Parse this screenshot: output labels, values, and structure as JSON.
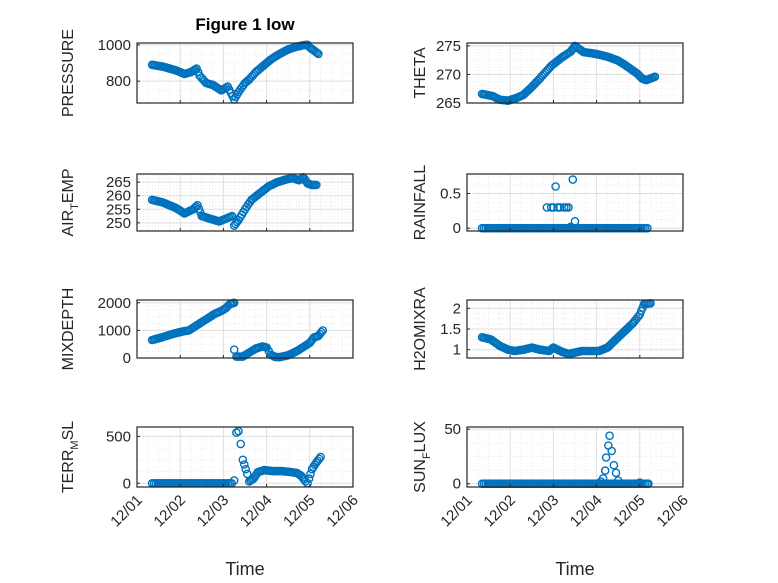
{
  "figure": {
    "title": "Figure 1 low"
  },
  "colors": {
    "marker": "#0072BD",
    "axes": "#262626",
    "grid": "#DFDFDF"
  },
  "chart_data": [
    {
      "type": "scatter",
      "ylabel": "PRESSURE",
      "ylim": [
        680,
        1010
      ],
      "yticks": [
        800,
        1000
      ],
      "ylabel_parts": [
        {
          "t": "PRESSURE",
          "sub": false
        }
      ],
      "xlim": [
        0,
        5
      ],
      "xticks": [
        "12/01",
        "12/02",
        "12/03",
        "12/04",
        "12/05",
        "12/06"
      ],
      "xlabel": "",
      "shape": [
        [
          0.35,
          890
        ],
        [
          0.6,
          880
        ],
        [
          0.9,
          860
        ],
        [
          1.1,
          840
        ],
        [
          1.25,
          850
        ],
        [
          1.38,
          870
        ],
        [
          1.45,
          830
        ],
        [
          1.6,
          790
        ],
        [
          1.75,
          780
        ],
        [
          1.95,
          750
        ],
        [
          2.1,
          770
        ],
        [
          2.25,
          700
        ],
        [
          2.35,
          740
        ],
        [
          2.5,
          790
        ],
        [
          2.6,
          810
        ],
        [
          2.75,
          850
        ],
        [
          2.9,
          880
        ],
        [
          3.1,
          920
        ],
        [
          3.3,
          950
        ],
        [
          3.5,
          975
        ],
        [
          3.7,
          990
        ],
        [
          3.85,
          998
        ],
        [
          3.95,
          1000
        ],
        [
          4.0,
          985
        ],
        [
          4.1,
          968
        ],
        [
          4.2,
          950
        ]
      ]
    },
    {
      "type": "scatter",
      "ylabel": "THETA",
      "ylim": [
        265,
        275.5
      ],
      "yticks": [
        265,
        270,
        275
      ],
      "ylabel_parts": [
        {
          "t": "THETA",
          "sub": false
        }
      ],
      "xlim": [
        0,
        5
      ],
      "xticks": [
        "12/01",
        "12/02",
        "12/03",
        "12/04",
        "12/05",
        "12/06"
      ],
      "xlabel": "",
      "shape": [
        [
          0.35,
          266.6
        ],
        [
          0.6,
          266.2
        ],
        [
          0.75,
          265.6
        ],
        [
          0.95,
          265.4
        ],
        [
          1.15,
          265.9
        ],
        [
          1.3,
          266.4
        ],
        [
          1.5,
          267.8
        ],
        [
          1.7,
          269.4
        ],
        [
          1.95,
          271.5
        ],
        [
          2.2,
          273.0
        ],
        [
          2.4,
          274.0
        ],
        [
          2.5,
          275.0
        ],
        [
          2.7,
          273.9
        ],
        [
          2.9,
          273.7
        ],
        [
          3.1,
          273.4
        ],
        [
          3.3,
          273.0
        ],
        [
          3.5,
          272.4
        ],
        [
          3.65,
          271.7
        ],
        [
          3.8,
          270.9
        ],
        [
          3.95,
          270.1
        ],
        [
          4.05,
          269.3
        ],
        [
          4.15,
          269.0
        ],
        [
          4.25,
          269.3
        ],
        [
          4.35,
          269.6
        ]
      ]
    },
    {
      "type": "scatter",
      "ylabel": "AIR_TEMP",
      "ylim": [
        247,
        268
      ],
      "yticks": [
        250,
        255,
        260,
        265
      ],
      "ylabel_parts": [
        {
          "t": "AIR",
          "sub": false
        },
        {
          "t": "T",
          "sub": true
        },
        {
          "t": "EMP",
          "sub": false
        }
      ],
      "xlim": [
        0,
        5
      ],
      "xticks": [
        "12/01",
        "12/02",
        "12/03",
        "12/04",
        "12/05",
        "12/06"
      ],
      "xlabel": "",
      "shape": [
        [
          0.35,
          258.5
        ],
        [
          0.6,
          257.5
        ],
        [
          0.9,
          255.5
        ],
        [
          1.1,
          253.5
        ],
        [
          1.3,
          255.0
        ],
        [
          1.4,
          256.5
        ],
        [
          1.5,
          252.5
        ],
        [
          1.7,
          251.5
        ],
        [
          1.9,
          250.5
        ],
        [
          2.05,
          251.5
        ],
        [
          2.2,
          252.5
        ],
        [
          2.25,
          249.0
        ],
        [
          2.35,
          251.0
        ],
        [
          2.5,
          255.0
        ],
        [
          2.65,
          258.5
        ],
        [
          2.85,
          261.0
        ],
        [
          3.05,
          263.5
        ],
        [
          3.25,
          265.0
        ],
        [
          3.45,
          266.0
        ],
        [
          3.6,
          266.5
        ],
        [
          3.75,
          265.7
        ],
        [
          3.85,
          266.8
        ],
        [
          3.95,
          264.5
        ],
        [
          4.05,
          264.0
        ],
        [
          4.15,
          264.0
        ]
      ]
    },
    {
      "type": "scatter",
      "ylabel": "RAINFALL",
      "ylim": [
        -0.04,
        0.78
      ],
      "yticks": [
        0,
        0.5
      ],
      "ylabel_parts": [
        {
          "t": "RAINFALL",
          "sub": false
        }
      ],
      "xlim": [
        0,
        5
      ],
      "xticks": [
        "12/01",
        "12/02",
        "12/03",
        "12/04",
        "12/05",
        "12/06"
      ],
      "xlabel": "",
      "baseline": [
        0.35,
        4.2,
        0
      ],
      "points": [
        [
          1.85,
          0.3
        ],
        [
          1.95,
          0.3
        ],
        [
          2.0,
          0.3
        ],
        [
          2.05,
          0.6
        ],
        [
          2.1,
          0.3
        ],
        [
          2.15,
          0.3
        ],
        [
          2.25,
          0.3
        ],
        [
          2.3,
          0.3
        ],
        [
          2.35,
          0.3
        ],
        [
          2.45,
          0.7
        ],
        [
          2.5,
          0.1
        ],
        [
          2.4,
          0.02
        ]
      ]
    },
    {
      "type": "scatter",
      "ylabel": "MIXDEPTH",
      "ylim": [
        0,
        2100
      ],
      "yticks": [
        0,
        1000,
        2000
      ],
      "ylabel_parts": [
        {
          "t": "MIXDEPTH",
          "sub": false
        }
      ],
      "xlim": [
        0,
        5
      ],
      "xticks": [
        "12/01",
        "12/02",
        "12/03",
        "12/04",
        "12/05",
        "12/06"
      ],
      "xlabel": "",
      "shape": [
        [
          0.35,
          650
        ],
        [
          0.6,
          760
        ],
        [
          0.85,
          880
        ],
        [
          1.05,
          960
        ],
        [
          1.2,
          1000
        ],
        [
          1.35,
          1150
        ],
        [
          1.5,
          1300
        ],
        [
          1.65,
          1450
        ],
        [
          1.8,
          1600
        ],
        [
          1.95,
          1700
        ],
        [
          2.05,
          1800
        ],
        [
          2.15,
          1950
        ],
        [
          2.25,
          2000
        ]
      ],
      "segments": [
        [
          [
            2.25,
            300
          ],
          [
            2.3,
            50
          ],
          [
            2.45,
            50
          ],
          [
            2.6,
            200
          ],
          [
            2.75,
            340
          ],
          [
            2.9,
            420
          ],
          [
            3.0,
            380
          ],
          [
            3.05,
            250
          ],
          [
            3.1,
            120
          ],
          [
            3.2,
            40
          ],
          [
            3.3,
            30
          ],
          [
            3.5,
            100
          ],
          [
            3.7,
            250
          ],
          [
            3.85,
            400
          ],
          [
            4.0,
            550
          ],
          [
            4.1,
            750
          ],
          [
            4.2,
            800
          ],
          [
            4.3,
            1000
          ]
        ]
      ]
    },
    {
      "type": "scatter",
      "ylabel": "H2OMIXRA",
      "ylim": [
        0.8,
        2.2
      ],
      "yticks": [
        1,
        1.5,
        2
      ],
      "ylabel_parts": [
        {
          "t": "H2OMIXRA",
          "sub": false
        }
      ],
      "xlim": [
        0,
        5
      ],
      "xticks": [
        "12/01",
        "12/02",
        "12/03",
        "12/04",
        "12/05",
        "12/06"
      ],
      "xlabel": "",
      "shape": [
        [
          0.35,
          1.3
        ],
        [
          0.55,
          1.25
        ],
        [
          0.75,
          1.1
        ],
        [
          0.95,
          1.0
        ],
        [
          1.1,
          0.97
        ],
        [
          1.3,
          1.0
        ],
        [
          1.5,
          1.05
        ],
        [
          1.7,
          1.0
        ],
        [
          1.9,
          0.97
        ],
        [
          2.0,
          1.05
        ],
        [
          2.2,
          0.95
        ],
        [
          2.35,
          0.9
        ],
        [
          2.5,
          0.93
        ],
        [
          2.65,
          0.97
        ],
        [
          2.85,
          0.97
        ],
        [
          3.05,
          0.97
        ],
        [
          3.25,
          1.05
        ],
        [
          3.45,
          1.25
        ],
        [
          3.65,
          1.45
        ],
        [
          3.85,
          1.65
        ],
        [
          4.0,
          1.85
        ],
        [
          4.1,
          2.1
        ],
        [
          4.25,
          2.12
        ]
      ]
    },
    {
      "type": "scatter",
      "ylabel": "TERR_MSL",
      "ylim": [
        -40,
        600
      ],
      "yticks": [
        0,
        500
      ],
      "ylabel_parts": [
        {
          "t": "TERR",
          "sub": false
        },
        {
          "t": "M",
          "sub": true
        },
        {
          "t": "SL",
          "sub": false
        }
      ],
      "xlim": [
        0,
        5
      ],
      "xticks": [
        "12/01",
        "12/02",
        "12/03",
        "12/04",
        "12/05",
        "12/06"
      ],
      "xlabel": "Time",
      "baseline": [
        0.35,
        2.2,
        0
      ],
      "segments": [
        [
          [
            2.25,
            30
          ],
          [
            2.3,
            540
          ],
          [
            2.35,
            555
          ],
          [
            2.4,
            420
          ],
          [
            2.45,
            250
          ],
          [
            2.55,
            100
          ],
          [
            2.6,
            20
          ],
          [
            2.7,
            50
          ],
          [
            2.8,
            120
          ],
          [
            2.95,
            140
          ],
          [
            3.15,
            130
          ],
          [
            3.35,
            130
          ],
          [
            3.55,
            120
          ],
          [
            3.7,
            110
          ],
          [
            3.8,
            80
          ],
          [
            3.9,
            20
          ],
          [
            3.95,
            0
          ],
          [
            4.05,
            150
          ],
          [
            4.15,
            220
          ],
          [
            4.25,
            280
          ]
        ]
      ]
    },
    {
      "type": "scatter",
      "ylabel": "SUN_FLUX",
      "ylim": [
        -3,
        52
      ],
      "yticks": [
        0,
        50
      ],
      "ylabel_parts": [
        {
          "t": "SUN",
          "sub": false
        },
        {
          "t": "F",
          "sub": true
        },
        {
          "t": "LUX",
          "sub": false
        }
      ],
      "xlim": [
        0,
        5
      ],
      "xticks": [
        "12/01",
        "12/02",
        "12/03",
        "12/04",
        "12/05",
        "12/06"
      ],
      "xlabel": "Time",
      "baseline": [
        0.35,
        4.2,
        0
      ],
      "points": [
        [
          3.1,
          2
        ],
        [
          3.15,
          5
        ],
        [
          3.2,
          12
        ],
        [
          3.22,
          24
        ],
        [
          3.27,
          35
        ],
        [
          3.3,
          44
        ],
        [
          3.35,
          30
        ],
        [
          3.4,
          17
        ],
        [
          3.45,
          10
        ],
        [
          3.5,
          3
        ],
        [
          4.0,
          1
        ],
        [
          4.2,
          0
        ]
      ]
    }
  ]
}
